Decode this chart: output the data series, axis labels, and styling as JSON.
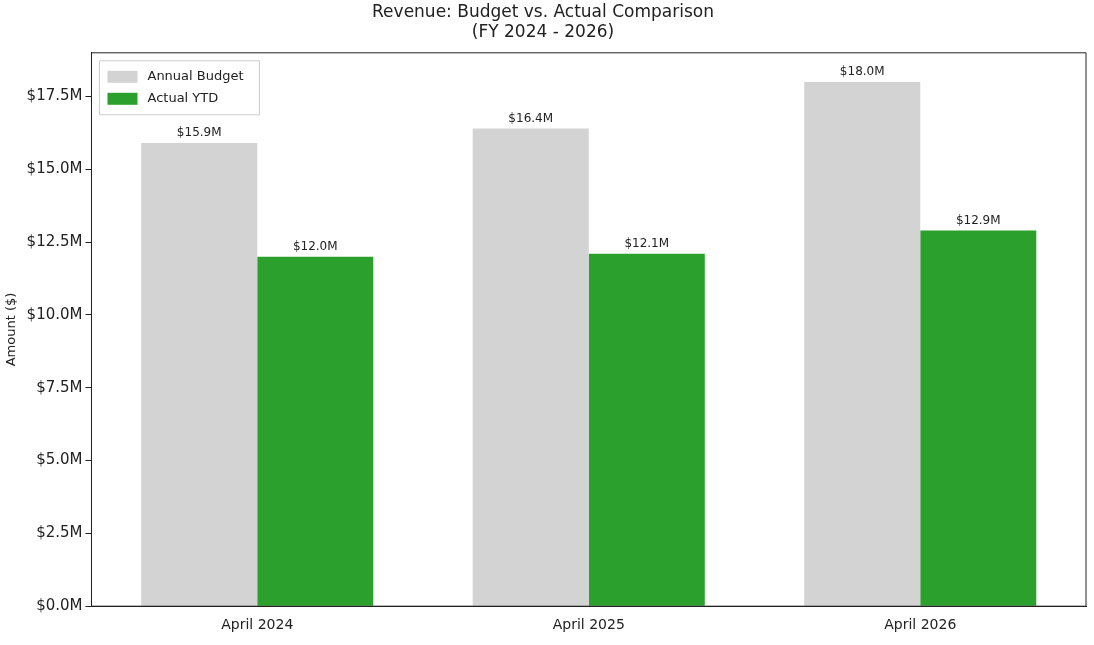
{
  "chart_data": {
    "type": "bar",
    "title": "Revenue: Budget vs. Actual Comparison\n(FY 2024 - 2026)",
    "ylabel": "Amount ($)",
    "categories": [
      "April 2024",
      "April 2025",
      "April 2026"
    ],
    "series": [
      {
        "name": "Annual Budget",
        "color": "#d3d3d3",
        "values": [
          15.9,
          16.4,
          18.0
        ],
        "value_labels": [
          "$15.9M",
          "$16.4M",
          "$18.0M"
        ]
      },
      {
        "name": "Actual YTD",
        "color": "#2ca02c",
        "values": [
          12.0,
          12.1,
          12.9
        ],
        "value_labels": [
          "$12.0M",
          "$12.1M",
          "$12.9M"
        ]
      }
    ],
    "ylim": [
      0,
      19
    ],
    "yticks": [
      {
        "value": 0,
        "label": "$0.0M"
      },
      {
        "value": 2.5,
        "label": "$2.5M"
      },
      {
        "value": 5,
        "label": "$5.0M"
      },
      {
        "value": 7.5,
        "label": "$7.5M"
      },
      {
        "value": 10,
        "label": "$10.0M"
      },
      {
        "value": 12.5,
        "label": "$12.5M"
      },
      {
        "value": 15,
        "label": "$15.0M"
      },
      {
        "value": 17.5,
        "label": "$17.5M"
      }
    ],
    "grid": false,
    "legend": "top left"
  }
}
